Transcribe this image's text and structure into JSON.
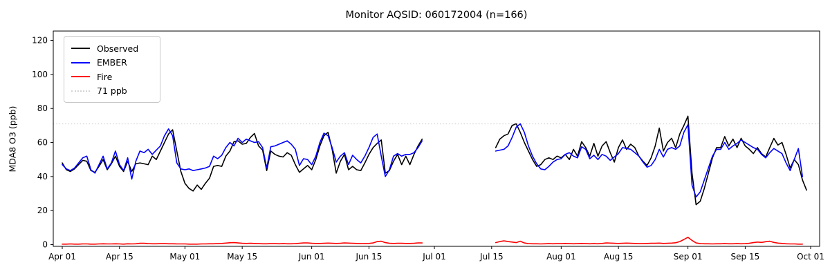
{
  "title": "Monitor AQSID: 060172004 (n=166)",
  "ylabel": "MDA8 O3 (ppb)",
  "legend": [
    {
      "label": "Observed",
      "color": "#000000",
      "style": "solid"
    },
    {
      "label": "EMBER",
      "color": "#0000ff",
      "style": "solid"
    },
    {
      "label": "Fire",
      "color": "#ff0000",
      "style": "solid"
    },
    {
      "label": "71 ppb",
      "color": "#d3d3d3",
      "style": "dotted"
    }
  ],
  "chart_data": {
    "type": "line",
    "title": "Monitor AQSID: 060172004 (n=166)",
    "xlabel": "",
    "ylabel": "MDA8 O3 (ppb)",
    "ylim": [
      0,
      120
    ],
    "yticks": [
      0,
      20,
      40,
      60,
      80,
      100,
      120
    ],
    "xtick_labels": [
      "Apr 01",
      "Apr 15",
      "May 01",
      "May 15",
      "Jun 01",
      "Jun 15",
      "Jul 01",
      "Jul 15",
      "Aug 01",
      "Aug 15",
      "Sep 01",
      "Sep 15",
      "Oct 01"
    ],
    "xtick_days": [
      0,
      14,
      30,
      44,
      61,
      75,
      91,
      105,
      122,
      136,
      153,
      167,
      183
    ],
    "threshold": {
      "value": 71,
      "label": "71 ppb",
      "color": "#d3d3d3",
      "style": "dotted"
    },
    "legend_position": "upper left",
    "grid": false,
    "data_gap": "no data Jun 29 through Jul 15",
    "series_colors": {
      "observed": "#000000",
      "ember": "#0000ff",
      "fire": "#ff0000"
    },
    "segments": [
      {
        "start_label": "Apr 01",
        "start_day": 0,
        "observed": [
          48,
          44,
          43,
          44.5,
          47,
          49.5,
          49,
          43.5,
          42.5,
          46,
          50,
          44,
          47.5,
          52,
          46,
          43,
          49,
          43,
          47.5,
          48,
          47.5,
          47,
          52,
          50,
          55,
          60,
          65,
          67.5,
          55,
          43,
          36,
          33,
          31.5,
          35,
          32.5,
          36,
          39,
          46,
          46.5,
          46,
          52,
          55,
          60.5,
          61,
          59,
          59.5,
          63,
          65.3,
          58,
          55.5,
          43.5,
          55,
          53,
          52,
          51.5,
          54,
          52.5,
          47,
          42.5,
          44.5,
          46.5,
          44,
          50,
          58,
          64,
          66,
          56,
          42,
          49,
          53,
          44,
          46,
          44,
          43.5,
          48,
          53,
          57,
          59.5,
          61.5,
          42,
          43.5,
          49,
          53,
          47,
          52,
          47,
          53,
          58,
          62
        ],
        "ember": [
          47,
          44.5,
          43.5,
          45,
          48,
          51,
          52,
          44,
          42,
          47,
          52,
          44.5,
          48,
          55,
          47,
          43.5,
          51,
          38.5,
          49,
          55,
          54,
          56,
          53,
          55.5,
          58,
          64,
          68,
          64,
          48,
          44.5,
          44,
          44.5,
          43.5,
          44,
          44.5,
          45,
          46,
          52,
          50.5,
          52.5,
          57,
          60,
          58,
          62.5,
          60,
          62,
          61,
          60,
          60.5,
          57,
          45,
          57.5,
          58,
          59,
          60,
          61,
          59,
          56,
          46.5,
          50.5,
          50,
          47,
          52,
          60,
          65.5,
          64,
          57,
          48.5,
          52,
          54,
          47,
          52.5,
          50,
          48,
          52,
          57,
          63,
          65,
          52,
          40,
          44,
          52,
          53.5,
          52,
          53,
          53,
          54,
          57,
          61
        ],
        "fire": [
          0.3,
          0.3,
          0.4,
          0.3,
          0.3,
          0.4,
          0.4,
          0.3,
          0.3,
          0.4,
          0.5,
          0.4,
          0.4,
          0.5,
          0.4,
          0.3,
          0.5,
          0.4,
          0.5,
          0.8,
          0.8,
          0.6,
          0.5,
          0.5,
          0.6,
          0.6,
          0.5,
          0.5,
          0.4,
          0.4,
          0.4,
          0.3,
          0.3,
          0.3,
          0.4,
          0.4,
          0.5,
          0.5,
          0.6,
          0.7,
          0.9,
          1.1,
          1.2,
          1.0,
          0.8,
          0.7,
          0.8,
          0.7,
          0.6,
          0.5,
          0.5,
          0.6,
          0.6,
          0.5,
          0.6,
          0.5,
          0.5,
          0.6,
          0.8,
          1.0,
          1.0,
          0.8,
          0.7,
          0.7,
          0.8,
          0.9,
          0.8,
          0.7,
          0.8,
          1.0,
          0.9,
          0.8,
          0.7,
          0.6,
          0.6,
          0.7,
          1.0,
          1.8,
          2.0,
          1.2,
          0.8,
          0.7,
          0.8,
          0.8,
          0.7,
          0.7,
          0.8,
          1.0,
          1.0
        ]
      },
      {
        "start_label": "Jul 16",
        "start_day": 106,
        "observed": [
          57,
          62,
          64,
          65,
          70,
          71,
          66,
          60,
          55,
          50,
          46,
          47,
          50,
          51,
          50,
          52,
          51,
          53,
          50,
          56,
          52,
          60.5,
          57,
          52,
          59.5,
          52,
          58,
          60.5,
          54,
          48.5,
          57,
          61.5,
          56,
          59,
          57,
          52,
          49,
          46.5,
          51,
          58,
          68.5,
          55,
          60,
          62.5,
          57,
          65,
          70,
          75.5,
          42,
          23.5,
          25.5,
          33,
          42,
          51,
          57,
          57,
          63.5,
          58,
          62,
          57,
          62.5,
          58,
          56,
          53.5,
          57,
          53.5,
          51.5,
          57,
          62.4,
          58.5,
          60,
          53,
          45,
          50,
          47,
          38,
          32
        ],
        "ember": [
          55,
          55.5,
          56,
          58,
          63,
          69,
          71,
          66,
          58,
          52,
          47.5,
          44.5,
          44,
          46,
          48.5,
          50,
          50.5,
          53,
          54,
          52,
          51,
          57.5,
          56,
          50.5,
          52.5,
          50,
          53,
          52,
          49.5,
          51.5,
          53.5,
          57,
          56.5,
          56,
          54,
          52,
          48.5,
          45.5,
          46.5,
          50,
          56,
          51.5,
          56,
          57,
          56,
          58,
          66,
          70.5,
          35,
          28,
          31,
          38,
          45,
          52,
          56,
          56,
          60,
          56,
          58,
          59.5,
          61.5,
          60,
          58.5,
          57,
          56,
          53,
          51,
          54,
          56.5,
          55,
          53.5,
          48,
          43.5,
          50,
          56.5,
          40,
          null
        ],
        "fire": [
          1.2,
          1.8,
          2.2,
          1.8,
          1.5,
          1.2,
          2.0,
          1.0,
          0.6,
          0.5,
          0.5,
          0.4,
          0.5,
          0.6,
          0.5,
          0.6,
          0.6,
          0.7,
          0.6,
          0.5,
          0.6,
          0.7,
          0.6,
          0.5,
          0.6,
          0.5,
          0.7,
          1.0,
          0.9,
          0.8,
          0.7,
          0.8,
          0.9,
          0.8,
          0.7,
          0.6,
          0.6,
          0.7,
          0.8,
          0.8,
          0.9,
          0.7,
          0.8,
          0.9,
          1.1,
          1.8,
          3.0,
          4.3,
          2.5,
          1.0,
          0.6,
          0.5,
          0.5,
          0.4,
          0.5,
          0.5,
          0.6,
          0.5,
          0.5,
          0.6,
          0.5,
          0.6,
          0.8,
          1.2,
          1.5,
          1.3,
          1.7,
          2.0,
          1.3,
          0.9,
          0.7,
          0.5,
          0.4,
          0.4,
          0.3,
          0.3,
          null
        ]
      }
    ]
  }
}
